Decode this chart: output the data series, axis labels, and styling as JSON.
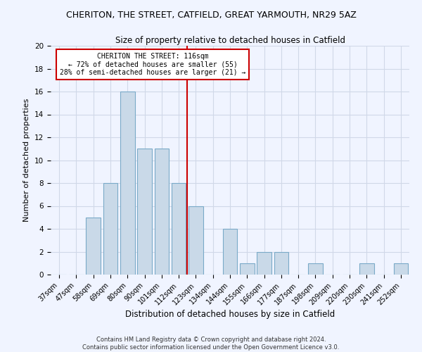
{
  "title_line1": "CHERITON, THE STREET, CATFIELD, GREAT YARMOUTH, NR29 5AZ",
  "title_line2": "Size of property relative to detached houses in Catfield",
  "xlabel": "Distribution of detached houses by size in Catfield",
  "ylabel": "Number of detached properties",
  "categories": [
    "37sqm",
    "47sqm",
    "58sqm",
    "69sqm",
    "80sqm",
    "90sqm",
    "101sqm",
    "112sqm",
    "123sqm",
    "134sqm",
    "144sqm",
    "155sqm",
    "166sqm",
    "177sqm",
    "187sqm",
    "198sqm",
    "209sqm",
    "220sqm",
    "230sqm",
    "241sqm",
    "252sqm"
  ],
  "values": [
    0,
    0,
    5,
    8,
    16,
    11,
    11,
    8,
    6,
    0,
    4,
    1,
    2,
    2,
    0,
    1,
    0,
    0,
    1,
    0,
    1
  ],
  "bar_color": "#c9d9e8",
  "bar_edge_color": "#7aaac8",
  "vline_x_index": 7,
  "vline_color": "#cc0000",
  "annotation_text": "CHERITON THE STREET: 116sqm\n← 72% of detached houses are smaller (55)\n28% of semi-detached houses are larger (21) →",
  "annotation_box_color": "#ffffff",
  "annotation_box_edge_color": "#cc0000",
  "ylim": [
    0,
    20
  ],
  "yticks": [
    0,
    2,
    4,
    6,
    8,
    10,
    12,
    14,
    16,
    18,
    20
  ],
  "grid_color": "#d0d8e8",
  "background_color": "#f0f4ff",
  "footer_line1": "Contains HM Land Registry data © Crown copyright and database right 2024.",
  "footer_line2": "Contains public sector information licensed under the Open Government Licence v3.0."
}
